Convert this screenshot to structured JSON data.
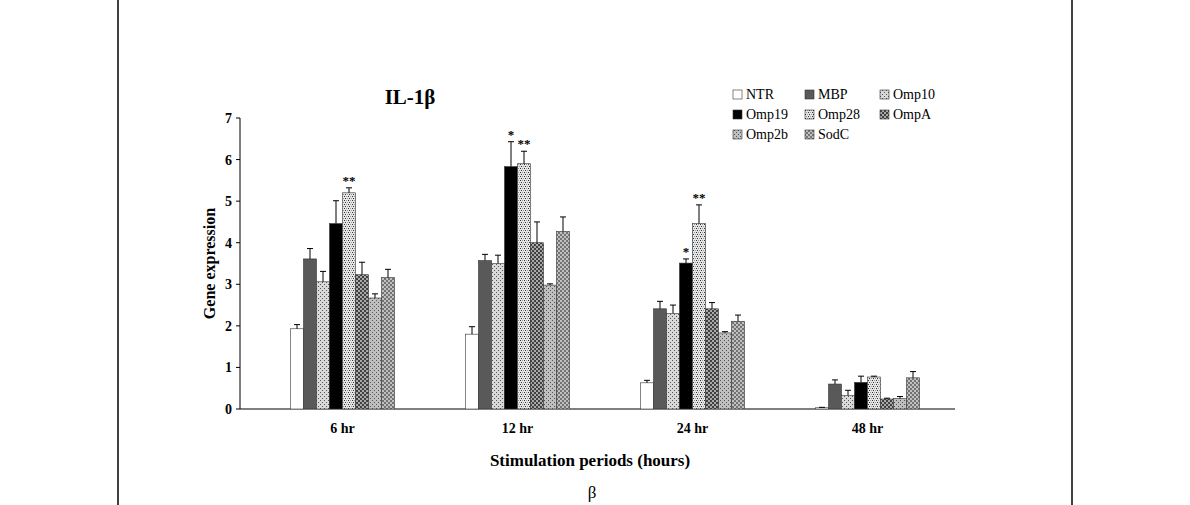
{
  "chart_data": {
    "type": "bar",
    "title": "IL-1β",
    "caption": "β",
    "x_label": "Stimulation periods (hours)",
    "y_label": "Gene expression",
    "categories": [
      "6 hr",
      "12 hr",
      "24 hr",
      "48 hr"
    ],
    "ylim": [
      0,
      7
    ],
    "yticks": [
      0,
      1,
      2,
      3,
      4,
      5,
      6,
      7
    ],
    "grid": false,
    "legend": "upper right",
    "series": [
      {
        "name": "NTR",
        "color": "#ffffff",
        "values": [
          1.93,
          1.8,
          0.63,
          0.03
        ],
        "errors": [
          0.1,
          0.18,
          0.06,
          0.01
        ]
      },
      {
        "name": "MBP",
        "color": "#595959",
        "values": [
          3.61,
          3.57,
          2.41,
          0.6
        ],
        "errors": [
          0.25,
          0.15,
          0.18,
          0.1
        ]
      },
      {
        "name": "Omp10",
        "color": "#d9d9d9",
        "values": [
          3.06,
          3.5,
          2.3,
          0.33
        ],
        "errors": [
          0.25,
          0.2,
          0.2,
          0.12
        ]
      },
      {
        "name": "Omp19",
        "color": "#000000",
        "values": [
          4.46,
          5.83,
          3.51,
          0.64
        ],
        "errors": [
          0.55,
          0.6,
          0.1,
          0.15
        ],
        "annotations": [
          null,
          "*",
          "*",
          null
        ]
      },
      {
        "name": "Omp28",
        "color": "#e6e6e6",
        "values": [
          5.2,
          5.9,
          4.46,
          0.77
        ],
        "errors": [
          0.12,
          0.3,
          0.45,
          0.02
        ],
        "annotations": [
          "**",
          "**",
          "**",
          null
        ]
      },
      {
        "name": "OmpA",
        "color": "#404040",
        "values": [
          3.23,
          4.0,
          2.41,
          0.24
        ],
        "errors": [
          0.3,
          0.5,
          0.15,
          0.02
        ]
      },
      {
        "name": "Omp2b",
        "color": "#bfbfbf",
        "values": [
          2.67,
          2.98,
          1.83,
          0.25
        ],
        "errors": [
          0.1,
          0.03,
          0.03,
          0.05
        ]
      },
      {
        "name": "SodC",
        "color": "#737373",
        "values": [
          3.16,
          4.27,
          2.11,
          0.75
        ],
        "errors": [
          0.2,
          0.35,
          0.15,
          0.15
        ]
      }
    ]
  }
}
